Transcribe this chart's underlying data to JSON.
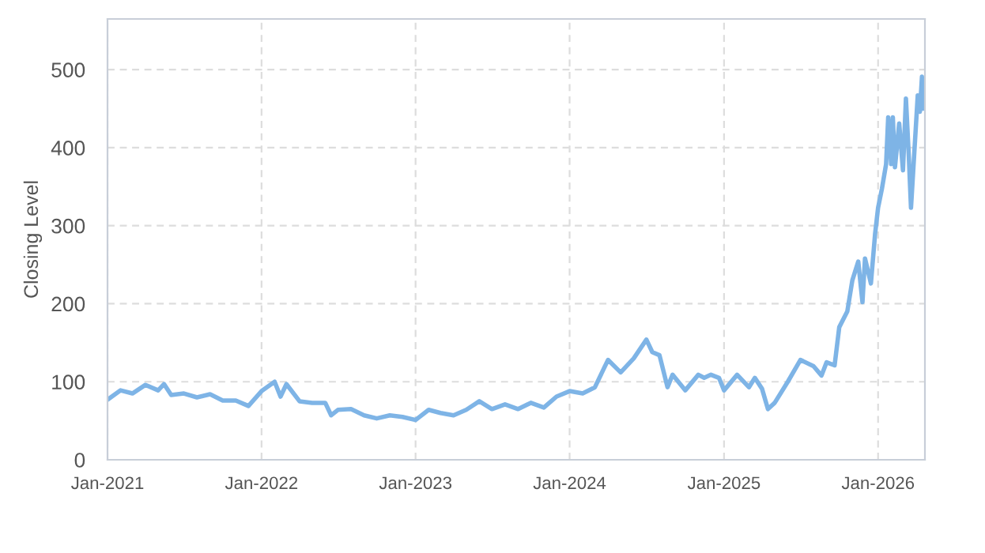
{
  "chart_data": {
    "type": "line",
    "ylabel": "Closing Level",
    "grid": true,
    "line_style": "solid",
    "marker": "none",
    "xlim": [
      "2021-01-01",
      "2026-04-22"
    ],
    "ylim": [
      0,
      565
    ],
    "xticks": [
      {
        "value": "2021-01-01",
        "label": "Jan-2021"
      },
      {
        "value": "2022-01-01",
        "label": "Jan-2022"
      },
      {
        "value": "2023-01-01",
        "label": "Jan-2023"
      },
      {
        "value": "2024-01-01",
        "label": "Jan-2024"
      },
      {
        "value": "2025-01-01",
        "label": "Jan-2025"
      },
      {
        "value": "2026-01-01",
        "label": "Jan-2026"
      }
    ],
    "yticks": [
      0,
      100,
      200,
      300,
      400,
      500
    ],
    "x": [
      "2021-01-01",
      "2021-02-01",
      "2021-03-01",
      "2021-04-01",
      "2021-05-01",
      "2021-05-15",
      "2021-06-01",
      "2021-07-01",
      "2021-08-01",
      "2021-09-01",
      "2021-10-01",
      "2021-11-01",
      "2021-12-01",
      "2022-01-01",
      "2022-02-01",
      "2022-02-15",
      "2022-03-01",
      "2022-04-01",
      "2022-05-01",
      "2022-06-01",
      "2022-06-15",
      "2022-07-01",
      "2022-08-01",
      "2022-09-01",
      "2022-10-01",
      "2022-11-01",
      "2022-12-01",
      "2023-01-01",
      "2023-02-01",
      "2023-03-01",
      "2023-04-01",
      "2023-05-01",
      "2023-06-01",
      "2023-07-01",
      "2023-08-01",
      "2023-09-01",
      "2023-10-01",
      "2023-11-01",
      "2023-12-01",
      "2024-01-01",
      "2024-02-01",
      "2024-03-01",
      "2024-04-01",
      "2024-05-01",
      "2024-06-01",
      "2024-07-01",
      "2024-07-15",
      "2024-08-01",
      "2024-08-20",
      "2024-09-01",
      "2024-10-01",
      "2024-11-01",
      "2024-11-15",
      "2024-12-01",
      "2024-12-20",
      "2025-01-01",
      "2025-02-01",
      "2025-03-01",
      "2025-03-15",
      "2025-04-01",
      "2025-04-15",
      "2025-05-01",
      "2025-06-01",
      "2025-07-01",
      "2025-08-01",
      "2025-08-20",
      "2025-09-01",
      "2025-09-20",
      "2025-10-01",
      "2025-10-20",
      "2025-11-01",
      "2025-11-15",
      "2025-11-25",
      "2025-12-01",
      "2025-12-15",
      "2025-12-25",
      "2026-01-01",
      "2026-01-10",
      "2026-01-20",
      "2026-01-25",
      "2026-02-01",
      "2026-02-05",
      "2026-02-10",
      "2026-02-20",
      "2026-03-01",
      "2026-03-08",
      "2026-03-15",
      "2026-03-20",
      "2026-03-28",
      "2026-04-05",
      "2026-04-10",
      "2026-04-15",
      "2026-04-18"
    ],
    "series": [
      {
        "color": "#7eb4e6",
        "values": [
          77,
          89,
          85,
          96,
          89,
          97,
          83,
          85,
          80,
          84,
          76,
          76,
          69,
          88,
          100,
          81,
          97,
          75,
          73,
          73,
          57,
          64,
          65,
          57,
          53,
          57,
          55,
          51,
          64,
          60,
          57,
          64,
          75,
          65,
          71,
          65,
          73,
          67,
          81,
          88,
          85,
          93,
          128,
          112,
          130,
          154,
          138,
          134,
          93,
          109,
          89,
          109,
          105,
          109,
          105,
          89,
          109,
          93,
          105,
          91,
          65,
          73,
          100,
          128,
          120,
          108,
          125,
          121,
          170,
          190,
          230,
          254,
          202,
          258,
          226,
          290,
          323,
          347,
          379,
          439,
          379,
          439,
          375,
          431,
          371,
          463,
          387,
          323,
          395,
          467,
          446,
          491,
          450
        ]
      }
    ]
  }
}
